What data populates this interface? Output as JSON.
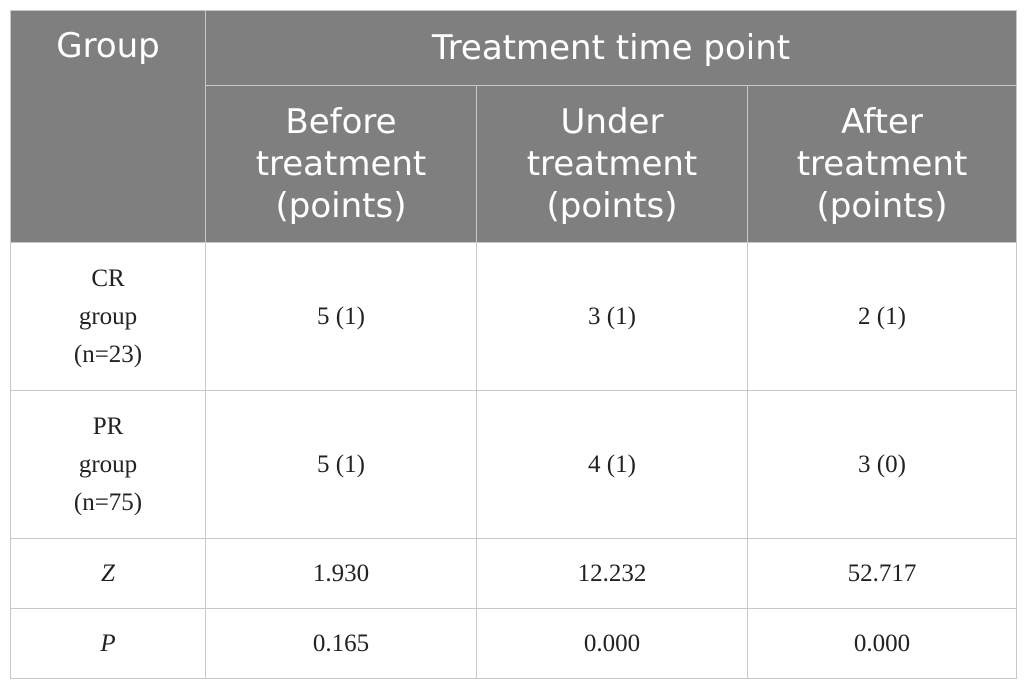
{
  "table": {
    "header": {
      "group": "Group",
      "time_point": "Treatment time point",
      "columns": [
        [
          "Before",
          "treatment",
          "(points)"
        ],
        [
          "Under",
          "treatment",
          "(points)"
        ],
        [
          "After",
          "treatment",
          "(points)"
        ]
      ]
    },
    "rows": [
      {
        "label": [
          "CR",
          "group",
          "(n=23)"
        ],
        "values": [
          "5 (1)",
          "3 (1)",
          "2 (1)"
        ]
      },
      {
        "label": [
          "PR",
          "group",
          "(n=75)"
        ],
        "values": [
          "5 (1)",
          "4 (1)",
          "3 (0)"
        ]
      },
      {
        "label": [
          "Z"
        ],
        "values": [
          "1.930",
          "12.232",
          "52.717"
        ]
      },
      {
        "label": [
          "P"
        ],
        "values": [
          "0.165",
          "0.000",
          "0.000"
        ]
      }
    ]
  },
  "colors": {
    "header_bg": "#7f7f7f",
    "header_text": "#ffffff",
    "border": "#c8c8c8",
    "body_text": "#222222"
  }
}
